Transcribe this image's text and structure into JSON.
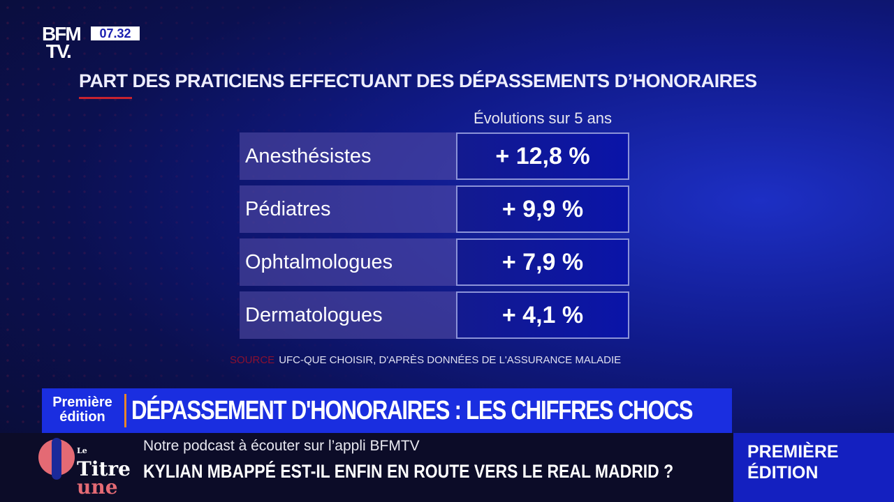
{
  "channel": {
    "logo": "BFM TV.",
    "time": "07.32"
  },
  "graphic": {
    "title": "PART DES PRATICIENS EFFECTUANT DES DÉPASSEMENTS D’HONORAIRES",
    "column_header": "Évolutions sur 5 ans",
    "rows": [
      {
        "label": "Anesthésistes",
        "value": "+ 12,8 %"
      },
      {
        "label": "Pédiatres",
        "value": "+ 9,9 %"
      },
      {
        "label": "Ophtalmologues",
        "value": "+ 7,9 %"
      },
      {
        "label": "Dermatologues",
        "value": "+ 4,1 %"
      }
    ],
    "source_label": "SOURCE",
    "source_text": "UFC-QUE CHOISIR, D'APRÈS DONNÉES DE L'ASSURANCE MALADIE"
  },
  "banner": {
    "edition_line1": "Première",
    "edition_line2": "édition",
    "headline": "DÉPASSEMENT D'HONORAIRES : LES CHIFFRES CHOCS"
  },
  "ticker": {
    "podcast_logo": "Le Titre à la une",
    "podcast_text": "Notre podcast à écouter sur l’appli BFMTV",
    "news": "KYLIAN MBAPPÉ EST-IL ENFIN EN ROUTE VERS LE REAL MADRID ?"
  },
  "corner": {
    "line1": "PREMIÈRE",
    "line2": "ÉDITION"
  },
  "colors": {
    "accent_red": "#c8232f",
    "banner_blue": "#1a2ee0",
    "edition_orange": "#e8872a",
    "podcast_pink": "#e46a74"
  }
}
